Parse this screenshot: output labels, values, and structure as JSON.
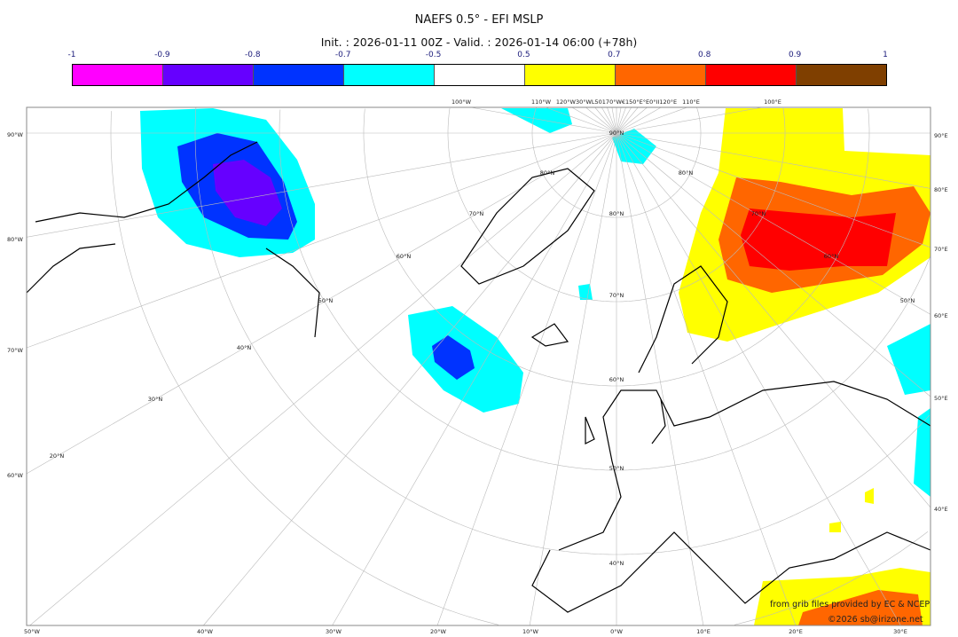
{
  "header": {
    "title": "NAEFS 0.5° - EFI MSLP",
    "subtitle": "Init. : 2026-01-11 00Z - Valid. : 2026-01-14 06:00 (+78h)"
  },
  "colorbar": {
    "ticks": [
      "-1",
      "-0.9",
      "-0.8",
      "-0.7",
      "-0.5",
      "0.5",
      "0.7",
      "0.8",
      "0.9",
      "1"
    ],
    "colors": [
      "#ff00ff",
      "#6600ff",
      "#0033ff",
      "#00ffff",
      "#ffffff",
      "#ffff00",
      "#ff6600",
      "#ff0000",
      "#7f3f00"
    ]
  },
  "map": {
    "left_labels": [
      "90°W",
      "80°W",
      "70°W",
      "60°W"
    ],
    "right_labels": [
      "90°E",
      "80°E",
      "70°E",
      "60°E",
      "50°E",
      "40°E"
    ],
    "bottom_labels": [
      "50°W",
      "40°W",
      "30°W",
      "20°W",
      "10°W",
      "0°W",
      "10°E",
      "20°E",
      "30°E"
    ],
    "top_labels": [
      "100°W",
      "110°W",
      "120°W30°WL50170°W€150°E°E0°II120°E",
      "110°E",
      "100°E"
    ],
    "lat_labels": [
      "90°N",
      "80°N",
      "70°N",
      "60°N",
      "50°N",
      "40°N",
      "30°N",
      "20°N",
      "80°N",
      "70°N",
      "60°N",
      "50°N",
      "40°N",
      "80°N",
      "70°N",
      "60°N",
      "50°N"
    ]
  },
  "footer": {
    "source": "from grib files provided by EC & NCEP",
    "copyright": "©2026 sb@irizone.net"
  }
}
